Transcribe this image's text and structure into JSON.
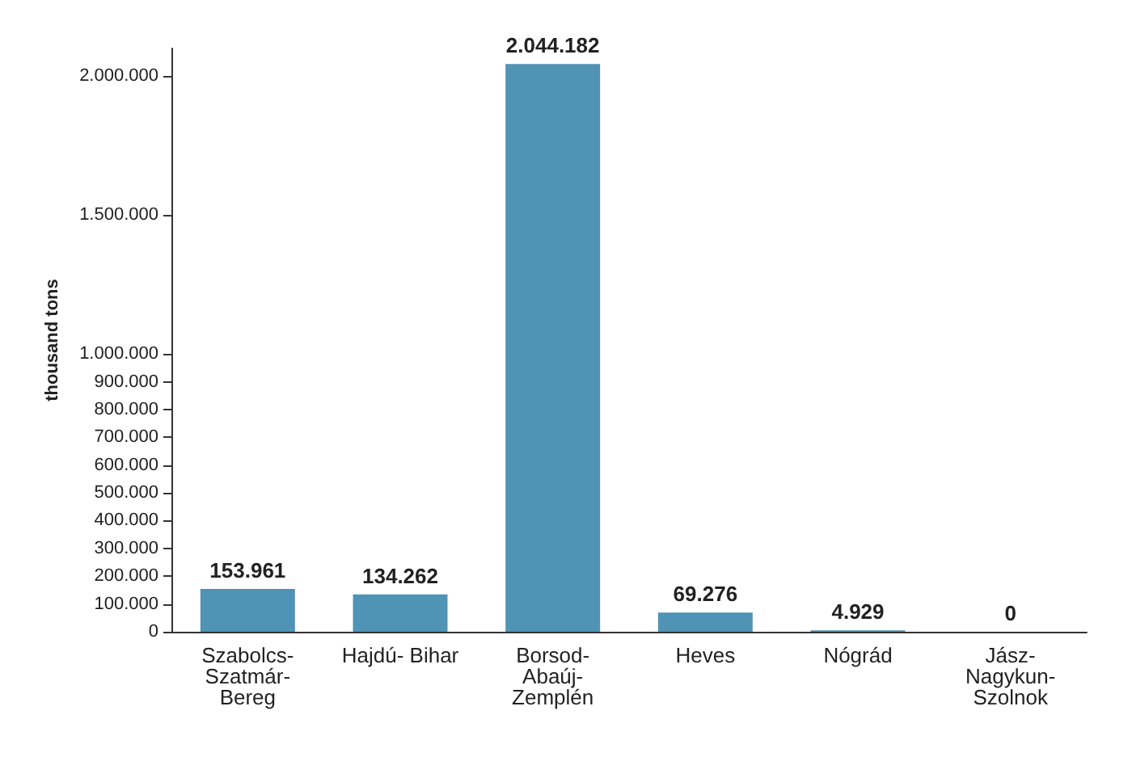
{
  "chart_data": {
    "type": "bar",
    "ylabel": "thousand tons",
    "categories": [
      "Szabolcs-Szatmár-Bereg",
      "Hajdú- Bihar",
      "Borsod-Abaúj-Zemplén",
      "Heves",
      "Nógrád",
      "Jász-Nagykun-Szolnok"
    ],
    "values": [
      153961,
      134262,
      2044182,
      69276,
      4929,
      0
    ],
    "value_labels": [
      "153.961",
      "134.262",
      "2.044.182",
      "69.276",
      "4.929",
      "0"
    ],
    "color": "#4f93b5",
    "ylim": [
      0,
      2100000
    ],
    "yticks": [
      {
        "value": 0,
        "label": "0"
      },
      {
        "value": 100000,
        "label": "100.000"
      },
      {
        "value": 200000,
        "label": "200.000"
      },
      {
        "value": 300000,
        "label": "300.000"
      },
      {
        "value": 400000,
        "label": "400.000"
      },
      {
        "value": 500000,
        "label": "500.000"
      },
      {
        "value": 600000,
        "label": "600.000"
      },
      {
        "value": 700000,
        "label": "700.000"
      },
      {
        "value": 800000,
        "label": "800.000"
      },
      {
        "value": 900000,
        "label": "900.000"
      },
      {
        "value": 1000000,
        "label": "1.000.000"
      },
      {
        "value": 1500000,
        "label": "1.500.000"
      },
      {
        "value": 2000000,
        "label": "2.000.000"
      }
    ],
    "grid": false
  }
}
